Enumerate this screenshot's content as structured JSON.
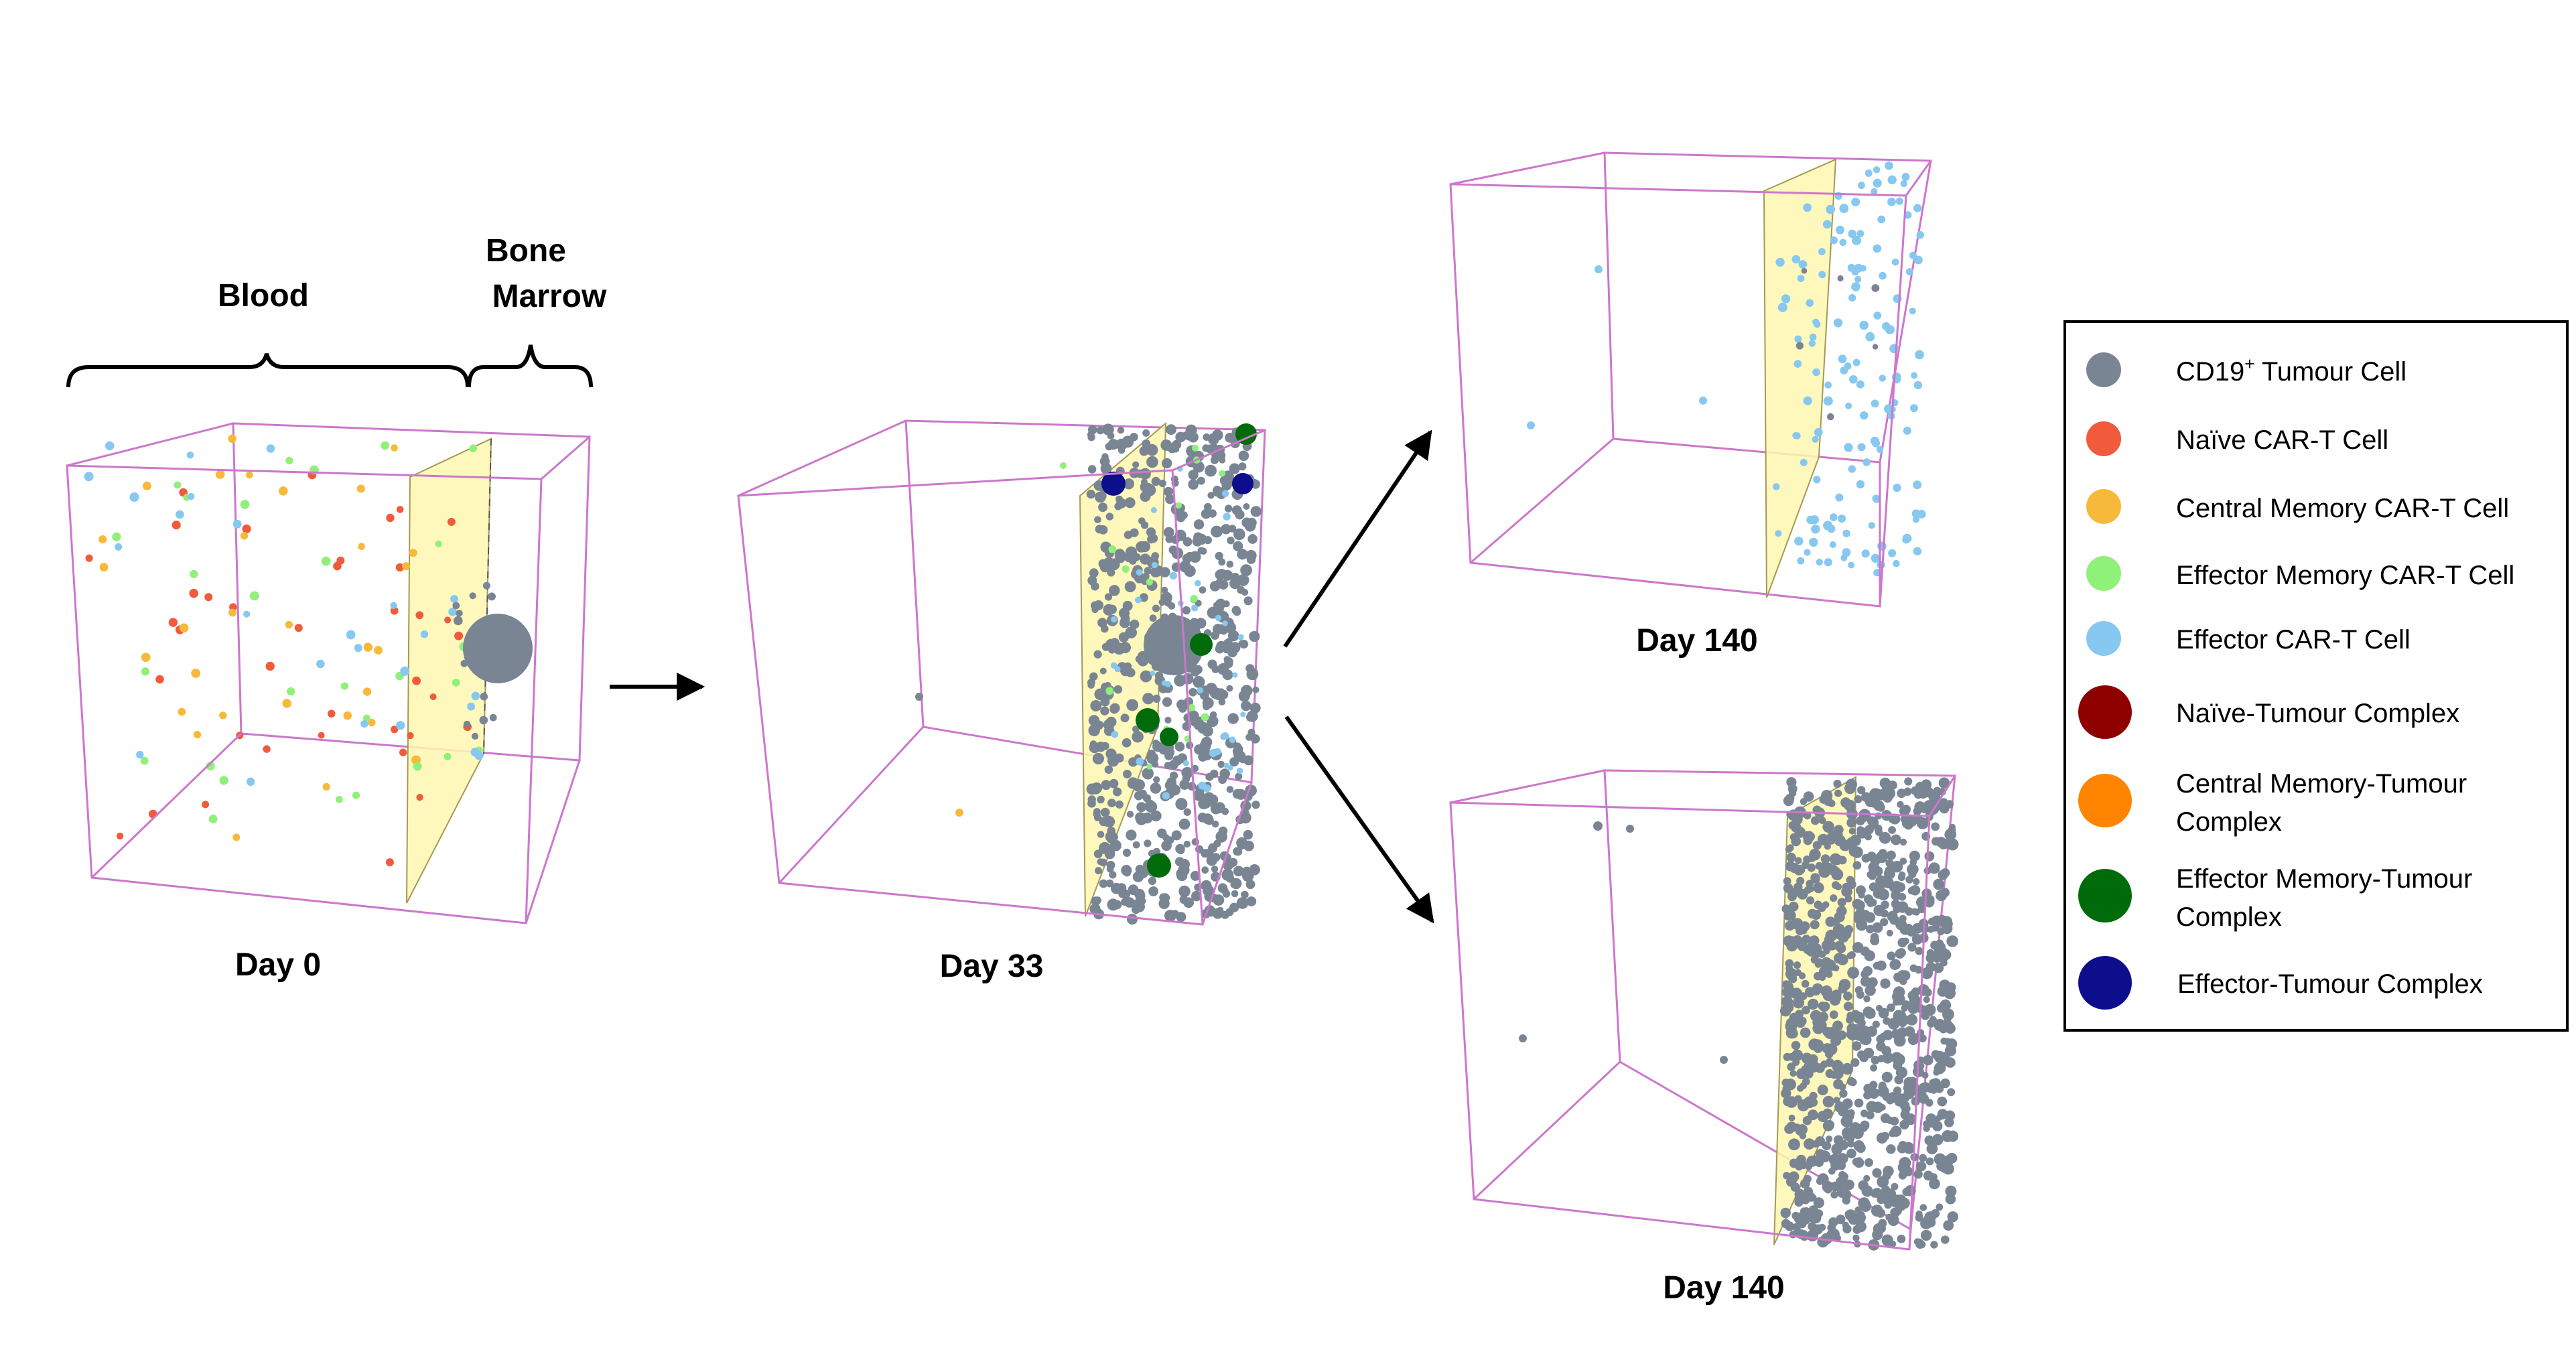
{
  "colors": {
    "box_edge": "#cc77cc",
    "marrow_plane": "#fff7b0",
    "tumour": "#7a8593",
    "naive": "#f25a3c",
    "central_memory": "#f7b93a",
    "effector_memory": "#8ff07a",
    "effector": "#86c8f0",
    "naive_complex": "#8e0000",
    "central_memory_complex": "#ff8400",
    "effector_memory_complex": "#006b0a",
    "effector_complex": "#0d0e8c"
  },
  "annotations": {
    "blood": "Blood",
    "bone": "Bone",
    "marrow": "Marrow"
  },
  "panels": [
    {
      "label": "Day 0"
    },
    {
      "label": "Day 33"
    },
    {
      "label": "Day 140"
    },
    {
      "label": "Day 140"
    }
  ],
  "legend": {
    "items": [
      {
        "label": "CD19",
        "sup": "+",
        "label_rest": " Tumour Cell",
        "color_key": "tumour",
        "icon": "small-dot-icon"
      },
      {
        "label": "Naïve CAR-T Cell",
        "color_key": "naive",
        "icon": "small-dot-icon"
      },
      {
        "label": "Central Memory CAR-T Cell",
        "color_key": "central_memory",
        "icon": "small-dot-icon"
      },
      {
        "label": "Effector Memory CAR-T Cell",
        "color_key": "effector_memory",
        "icon": "small-dot-icon"
      },
      {
        "label": "Effector CAR-T Cell",
        "color_key": "effector",
        "icon": "small-dot-icon"
      },
      {
        "label": "Naïve-Tumour Complex",
        "color_key": "naive_complex",
        "icon": "large-dot-icon"
      },
      {
        "label": "Central Memory-Tumour",
        "label2": "Complex",
        "color_key": "central_memory_complex",
        "icon": "large-dot-icon"
      },
      {
        "label": "Effector Memory-Tumour",
        "label2": "Complex",
        "color_key": "effector_memory_complex",
        "icon": "large-dot-icon"
      },
      {
        "label": "Effector-Tumour Complex",
        "color_key": "effector_complex",
        "icon": "large-dot-icon"
      }
    ]
  }
}
